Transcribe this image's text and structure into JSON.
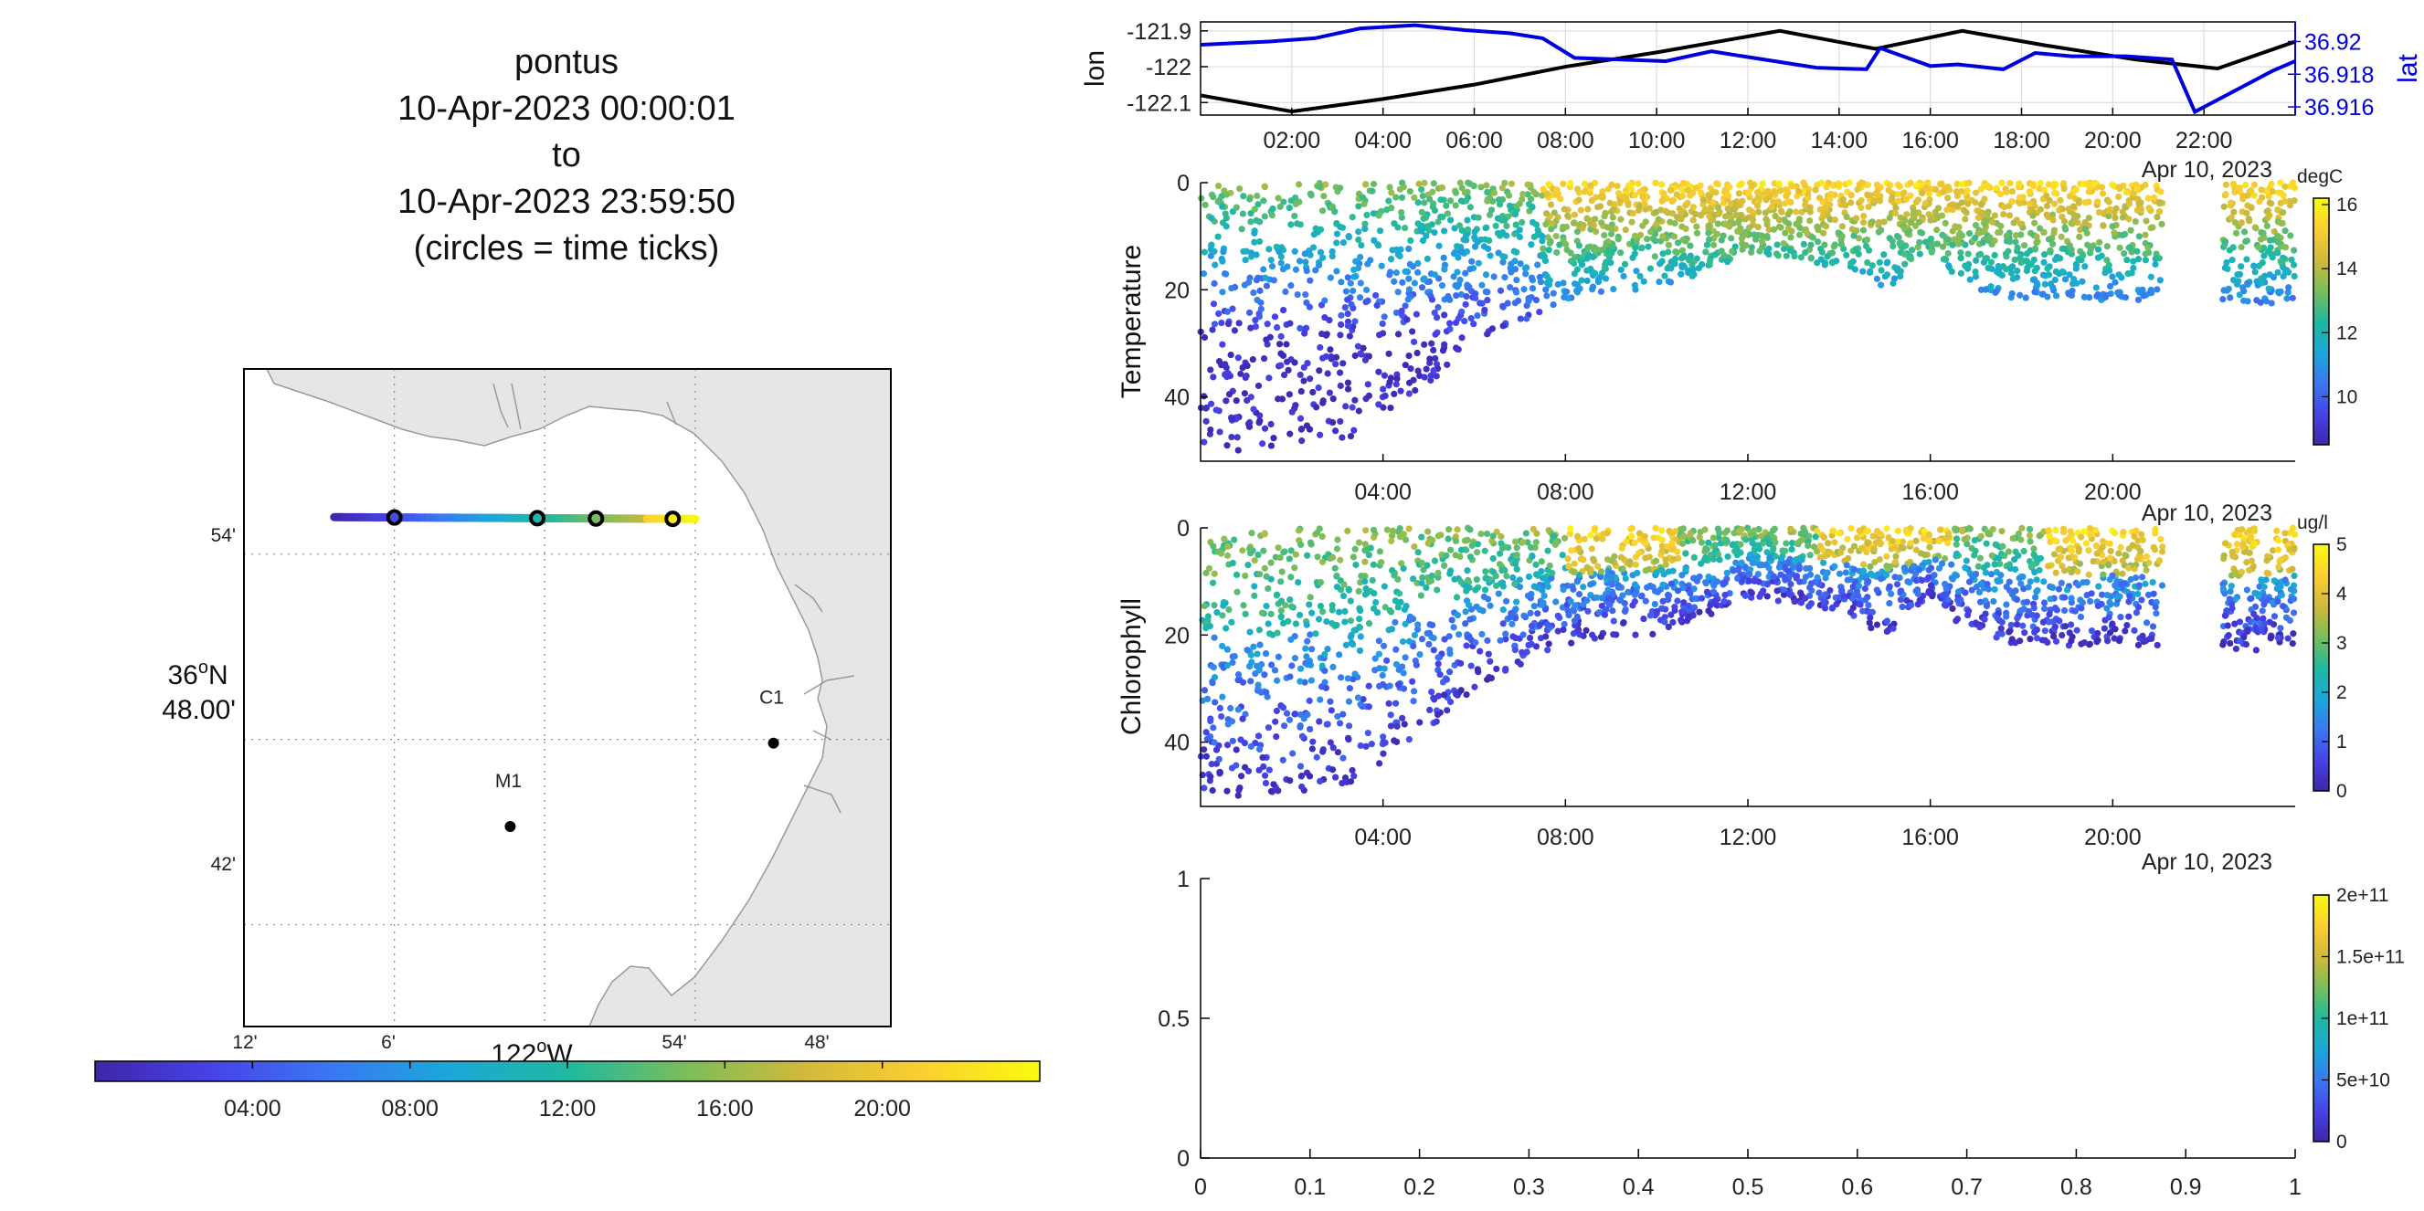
{
  "title_block": {
    "lines": [
      "pontus",
      "10-Apr-2023 00:00:01",
      "to",
      "10-Apr-2023 23:59:50",
      "(circles = time ticks)"
    ]
  },
  "colors": {
    "lon_line": "#000000",
    "lat_line": "#0000dd",
    "land": "#e6e6e6",
    "grid": "#888888",
    "parula_stops": [
      "#3e26a8",
      "#4743e9",
      "#3a78f2",
      "#1ba8d8",
      "#1eb9a0",
      "#7bbd5a",
      "#d1b93b",
      "#fbcf31",
      "#f9fb0e"
    ]
  },
  "chart_data": [
    {
      "id": "track_map",
      "type": "scatter",
      "xlabel": "122°W",
      "ylabel": "36°N 48.00'",
      "x_ticks": [
        "12'",
        "6'",
        "54'",
        "48'"
      ],
      "y_ticks": [
        "54'",
        "42'"
      ],
      "lon_range": [
        -122.2,
        -121.77
      ],
      "lat_range": [
        36.645,
        37.0
      ],
      "stations": [
        {
          "name": "C1",
          "lon": -121.848,
          "lat": 36.798
        },
        {
          "name": "M1",
          "lon": -122.023,
          "lat": 36.753
        }
      ],
      "track": {
        "lon_start": -122.14,
        "lon_end": -121.9,
        "lat": 36.92
      },
      "time_circles_lon": [
        -122.1,
        -122.005,
        -121.966,
        -121.915
      ],
      "colorbar": {
        "ticks": [
          "04:00",
          "08:00",
          "12:00",
          "16:00",
          "20:00"
        ],
        "range_hours": [
          0,
          24
        ]
      }
    },
    {
      "id": "lon_lat",
      "type": "line",
      "left_ylabel": "lon",
      "right_ylabel": "lat",
      "left_ticks": [
        "-121.9",
        "-122",
        "-122.1"
      ],
      "right_ticks": [
        "36.92",
        "36.918",
        "36.916"
      ],
      "left_ylim": [
        -122.135,
        -121.875
      ],
      "right_ylim": [
        36.9155,
        36.9212
      ],
      "x_ticks": [
        "02:00",
        "04:00",
        "06:00",
        "08:00",
        "10:00",
        "12:00",
        "14:00",
        "16:00",
        "18:00",
        "20:00",
        "22:00"
      ],
      "date_label": "Apr 10, 2023",
      "series": [
        {
          "name": "lon",
          "x": [
            0,
            2,
            4,
            6,
            8,
            10,
            12.7,
            14.8,
            16.7,
            18.5,
            20.5,
            22.3,
            24
          ],
          "values": [
            -122.08,
            -122.125,
            -122.09,
            -122.05,
            -122.0,
            -121.96,
            -121.9,
            -121.95,
            -121.9,
            -121.94,
            -121.98,
            -122.005,
            -121.93
          ]
        },
        {
          "name": "lat",
          "x": [
            0,
            1.5,
            2.5,
            3.5,
            4.7,
            5.8,
            6.8,
            7.5,
            8.2,
            10.2,
            11.2,
            13.5,
            14.6,
            14.9,
            16,
            16.6,
            17.6,
            18.3,
            19.1,
            20.3,
            21.3,
            21.8,
            23.5,
            24
          ],
          "values": [
            36.9198,
            36.92,
            36.9202,
            36.9208,
            36.921,
            36.9207,
            36.9205,
            36.9202,
            36.919,
            36.9188,
            36.9194,
            36.9184,
            36.9183,
            36.9196,
            36.9185,
            36.9186,
            36.9183,
            36.9193,
            36.9191,
            36.9191,
            36.9189,
            36.9157,
            36.9182,
            36.9188
          ]
        }
      ]
    },
    {
      "id": "temperature",
      "type": "scatter",
      "ylabel": "Temperature",
      "units": "degC",
      "y_ticks": [
        "0",
        "20",
        "40"
      ],
      "ylim": [
        0,
        52
      ],
      "x_ticks": [
        "04:00",
        "08:00",
        "12:00",
        "16:00",
        "20:00"
      ],
      "date_label": "Apr 10, 2023",
      "colorbar": {
        "ticks": [
          "16",
          "14",
          "12",
          "10"
        ],
        "range": [
          8.5,
          16.2
        ]
      },
      "max_depth_profile": {
        "x": [
          0,
          1,
          2,
          3,
          4,
          5,
          6,
          7,
          8,
          9,
          10,
          11,
          12,
          13,
          14,
          15,
          16,
          17,
          18,
          19,
          20,
          21,
          22,
          23,
          24
        ],
        "values": [
          50,
          50,
          50,
          49,
          44,
          38,
          30,
          26,
          22,
          20,
          20,
          17,
          13,
          14,
          16,
          20,
          14,
          20,
          22,
          22,
          22,
          22,
          22,
          23,
          22
        ]
      },
      "gap_hours": [
        21.1,
        22.4
      ],
      "surface_value": 15.5,
      "deep_value": 9.0
    },
    {
      "id": "chlorophyll",
      "type": "scatter",
      "ylabel": "Chlorophyll",
      "units": "ug/l",
      "y_ticks": [
        "0",
        "20",
        "40"
      ],
      "ylim": [
        0,
        52
      ],
      "x_ticks": [
        "04:00",
        "08:00",
        "12:00",
        "16:00",
        "20:00"
      ],
      "date_label": "Apr 10, 2023",
      "colorbar": {
        "ticks": [
          "5",
          "4",
          "3",
          "2",
          "1",
          "0"
        ],
        "range": [
          0,
          5
        ]
      },
      "gap_hours": [
        21.1,
        22.4
      ]
    },
    {
      "id": "empty_panel",
      "type": "scatter",
      "x_ticks": [
        "0",
        "0.1",
        "0.2",
        "0.3",
        "0.4",
        "0.5",
        "0.6",
        "0.7",
        "0.8",
        "0.9",
        "1"
      ],
      "y_ticks": [
        "0",
        "0.5",
        "1"
      ],
      "xlim": [
        0,
        1
      ],
      "ylim": [
        0,
        1
      ],
      "colorbar": {
        "ticks": [
          "2e+11",
          "1.5e+11",
          "1e+11",
          "5e+10",
          "0"
        ],
        "range": [
          0,
          200000000000.0
        ]
      }
    }
  ]
}
